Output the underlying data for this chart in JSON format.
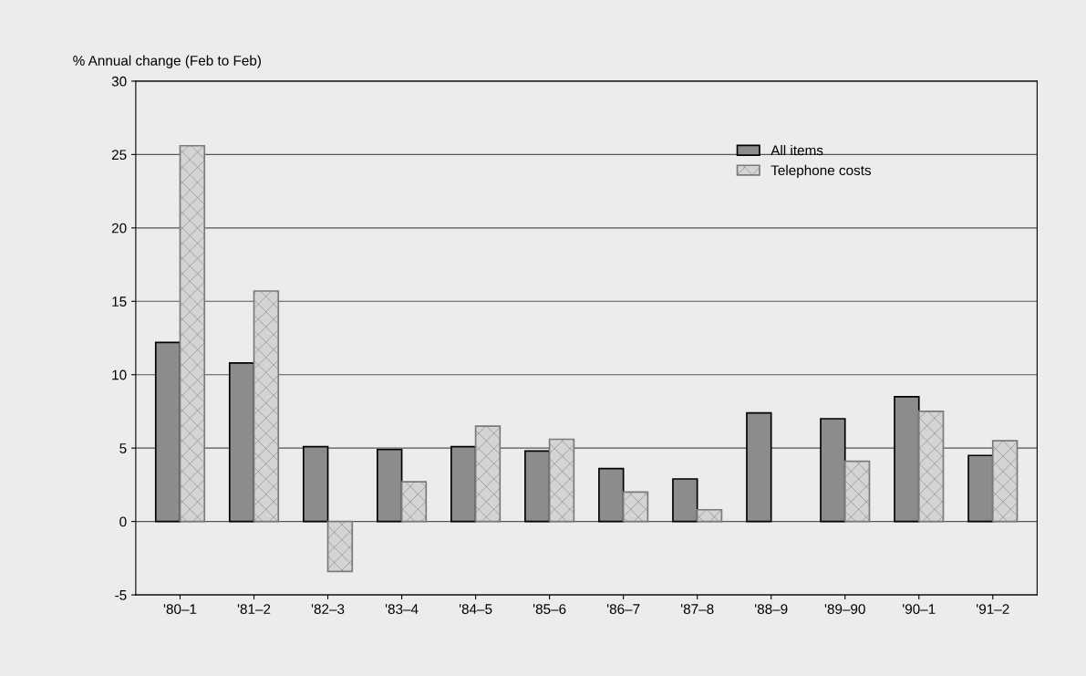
{
  "chart_data": {
    "type": "bar",
    "ylabel": "% Annual change (Feb to Feb)",
    "categories": [
      "'80–1",
      "'81–2",
      "'82–3",
      "'83–4",
      "'84–5",
      "'85–6",
      "'86–7",
      "'87–8",
      "'88–9",
      "'89–90",
      "'90–1",
      "'91–2"
    ],
    "series": [
      {
        "name": "All items",
        "color": "#8c8c8c",
        "values": [
          12.2,
          10.8,
          5.1,
          4.9,
          5.1,
          4.8,
          3.6,
          2.9,
          7.4,
          7.0,
          8.5,
          4.5
        ]
      },
      {
        "name": "Telephone costs",
        "color": "#7a7a7a",
        "values": [
          25.6,
          15.7,
          -3.4,
          2.7,
          6.5,
          5.6,
          2.0,
          0.8,
          null,
          4.1,
          7.5,
          5.5
        ]
      }
    ],
    "ylim": [
      -5,
      30
    ],
    "yticks": [
      -5,
      0,
      5,
      10,
      15,
      20,
      25,
      30
    ],
    "grid": "y",
    "legend": "top right"
  }
}
